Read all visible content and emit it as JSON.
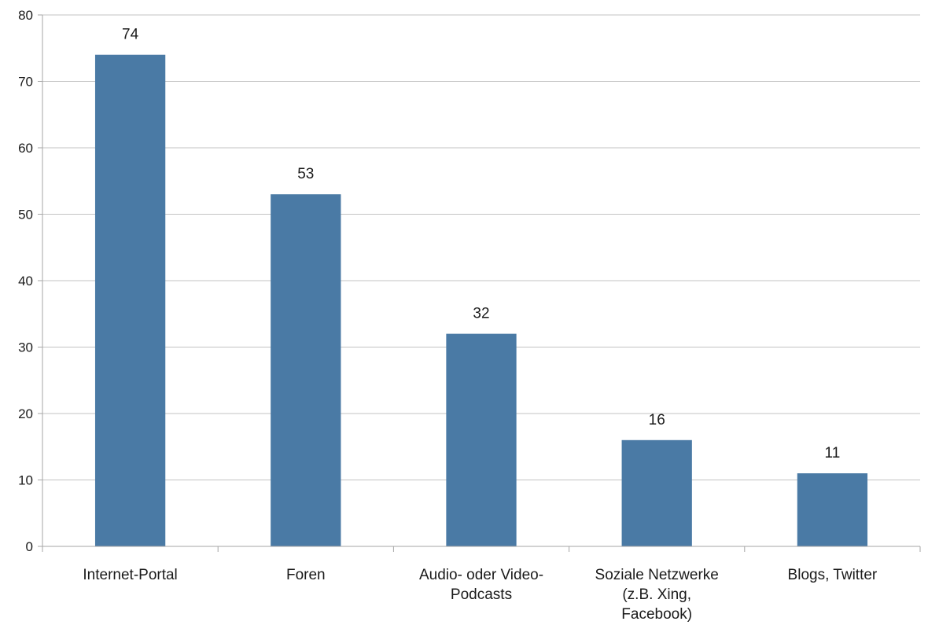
{
  "chart_data": {
    "type": "bar",
    "title": "",
    "xlabel": "",
    "ylabel": "",
    "categories": [
      [
        "Internet-Portal"
      ],
      [
        "Foren"
      ],
      [
        "Audio- oder Video-",
        "Podcasts"
      ],
      [
        "Soziale Netzwerke",
        "(z.B. Xing,",
        "Facebook)"
      ],
      [
        "Blogs, Twitter"
      ]
    ],
    "values": [
      74,
      53,
      32,
      16,
      11
    ],
    "data_labels": [
      "74",
      "53",
      "32",
      "16",
      "11"
    ],
    "ylim": [
      0,
      80
    ],
    "yticks": [
      0,
      10,
      20,
      30,
      40,
      50,
      60,
      70,
      80
    ],
    "grid": true,
    "legend": "none",
    "bar_color": "#4a7aa5"
  }
}
